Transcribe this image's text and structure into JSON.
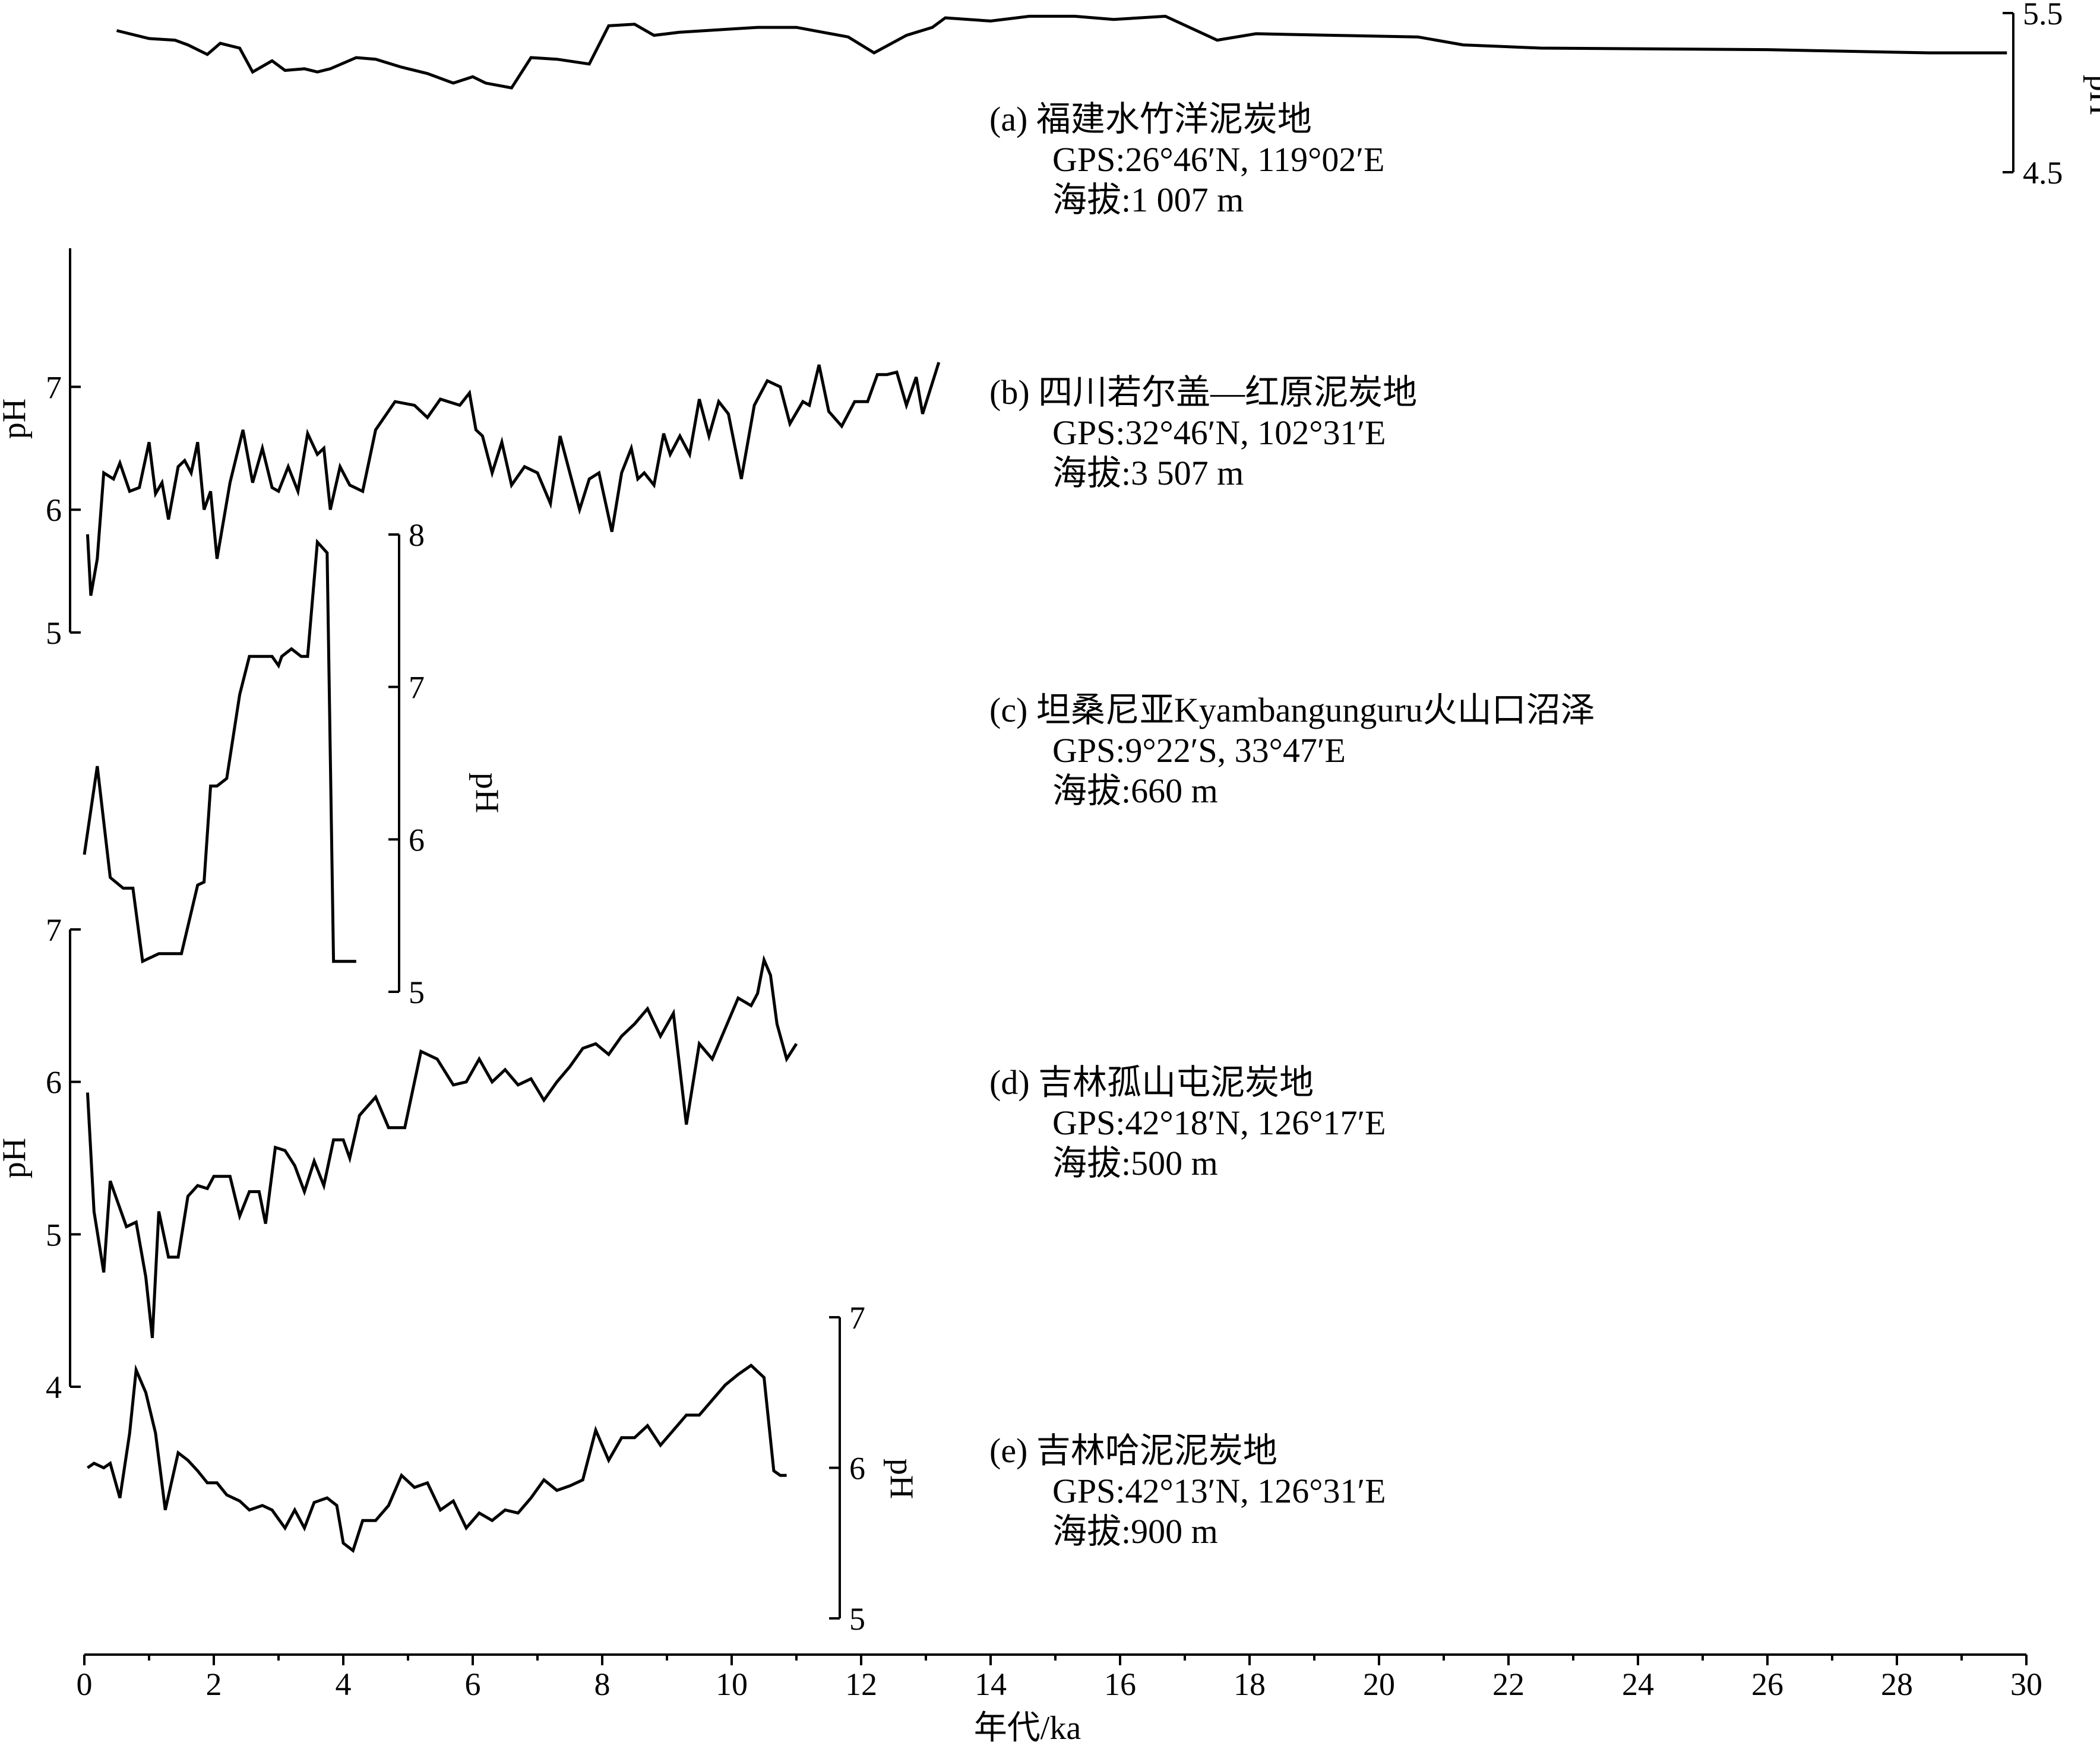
{
  "chart_data": {
    "type": "line",
    "xlabel": "年代/ka",
    "xlim": [
      0,
      30
    ],
    "x_ticks": [
      0,
      2,
      4,
      6,
      8,
      10,
      12,
      14,
      16,
      18,
      20,
      22,
      24,
      26,
      28,
      30
    ],
    "panels": [
      {
        "id": "a",
        "ylabel": "pH",
        "axis_side": "right",
        "ylim": [
          4.5,
          5.5
        ],
        "y_ticks": [
          4.5,
          5.5
        ],
        "lines": [
          "(a) 福建水竹洋泥炭地",
          "GPS:26°46′N, 119°02′E",
          "海拔:1 007 m"
        ],
        "x": [
          0.5,
          1.0,
          1.4,
          1.6,
          1.9,
          2.1,
          2.4,
          2.6,
          2.9,
          3.1,
          3.4,
          3.6,
          3.8,
          4.2,
          4.5,
          4.9,
          5.3,
          5.7,
          6.0,
          6.2,
          6.6,
          6.9,
          7.3,
          7.8,
          8.1,
          8.5,
          8.8,
          9.2,
          10.4,
          11.0,
          11.4,
          11.8,
          12.2,
          12.7,
          13.1,
          13.3,
          14.0,
          14.6,
          15.3,
          15.9,
          16.7,
          17.5,
          18.1,
          19.3,
          20.6,
          21.3,
          22.5,
          26.0,
          27.2,
          28.5,
          29.7
        ],
        "y": [
          5.39,
          5.34,
          5.33,
          5.3,
          5.24,
          5.31,
          5.28,
          5.13,
          5.2,
          5.14,
          5.15,
          5.13,
          5.15,
          5.22,
          5.21,
          5.16,
          5.12,
          5.06,
          5.1,
          5.06,
          5.03,
          5.22,
          5.21,
          5.18,
          5.42,
          5.43,
          5.36,
          5.38,
          5.41,
          5.41,
          5.38,
          5.35,
          5.25,
          5.36,
          5.41,
          5.47,
          5.45,
          5.48,
          5.48,
          5.46,
          5.48,
          5.33,
          5.37,
          5.36,
          5.35,
          5.3,
          5.28,
          5.27,
          5.26,
          5.25,
          5.25
        ]
      },
      {
        "id": "b",
        "ylabel": "pH",
        "axis_side": "left",
        "ylim": [
          5,
          7.5
        ],
        "y_ticks": [
          5,
          6,
          7
        ],
        "lines": [
          "(b) 四川若尔盖—红原泥炭地",
          "GPS:32°46′N, 102°31′E",
          "海拔:3 507 m"
        ],
        "x": [
          0.05,
          0.1,
          0.2,
          0.3,
          0.45,
          0.55,
          0.7,
          0.85,
          1.0,
          1.1,
          1.2,
          1.3,
          1.45,
          1.55,
          1.65,
          1.75,
          1.85,
          1.95,
          2.05,
          2.25,
          2.45,
          2.6,
          2.75,
          2.9,
          3.0,
          3.15,
          3.3,
          3.45,
          3.6,
          3.7,
          3.8,
          3.95,
          4.1,
          4.3,
          4.5,
          4.8,
          5.1,
          5.3,
          5.5,
          5.8,
          5.95,
          6.05,
          6.15,
          6.3,
          6.45,
          6.6,
          6.8,
          7.0,
          7.2,
          7.35,
          7.5,
          7.65,
          7.8,
          7.95,
          8.15,
          8.3,
          8.45,
          8.55,
          8.65,
          8.8,
          8.95,
          9.05,
          9.2,
          9.35,
          9.5,
          9.65,
          9.8,
          9.95,
          10.15,
          10.35,
          10.55,
          10.75,
          10.9,
          11.1,
          11.2,
          11.35,
          11.5,
          11.7,
          11.9,
          12.1,
          12.25,
          12.4,
          12.55,
          12.7,
          12.85,
          12.95,
          13.2
        ],
        "y": [
          5.8,
          5.3,
          5.6,
          6.3,
          6.25,
          6.38,
          6.15,
          6.18,
          6.55,
          6.13,
          6.22,
          5.92,
          6.35,
          6.4,
          6.3,
          6.55,
          6.0,
          6.15,
          5.6,
          6.22,
          6.65,
          6.22,
          6.5,
          6.18,
          6.15,
          6.35,
          6.15,
          6.62,
          6.45,
          6.5,
          6.0,
          6.35,
          6.2,
          6.15,
          6.65,
          6.88,
          6.85,
          6.75,
          6.9,
          6.85,
          6.95,
          6.65,
          6.6,
          6.3,
          6.55,
          6.2,
          6.35,
          6.3,
          6.05,
          6.6,
          6.3,
          6.0,
          6.25,
          6.3,
          5.82,
          6.3,
          6.5,
          6.25,
          6.3,
          6.2,
          6.62,
          6.45,
          6.6,
          6.45,
          6.9,
          6.6,
          6.88,
          6.78,
          6.25,
          6.85,
          7.05,
          7.0,
          6.7,
          6.88,
          6.85,
          7.18,
          6.8,
          6.68,
          6.88,
          6.88,
          7.1,
          7.1,
          7.12,
          6.85,
          7.08,
          6.78,
          7.2
        ]
      },
      {
        "id": "c",
        "ylabel": "pH",
        "axis_side": "right",
        "ylim": [
          5,
          8
        ],
        "y_ticks": [
          5,
          6,
          7,
          8
        ],
        "lines": [
          "(c) 坦桑尼亚Kyambangunguru火山口沼泽",
          "GPS:9°22′S, 33°47′E",
          "海拔:660 m"
        ],
        "x": [
          0.0,
          0.2,
          0.4,
          0.6,
          0.75,
          0.9,
          1.0,
          1.15,
          1.5,
          1.75,
          1.85,
          1.95,
          2.05,
          2.2,
          2.4,
          2.55,
          2.65,
          2.75,
          2.9,
          3.0,
          3.05,
          3.2,
          3.35,
          3.45,
          3.6,
          3.75,
          3.85,
          3.95,
          4.05,
          4.2
        ],
        "y": [
          5.9,
          6.48,
          5.75,
          5.68,
          5.68,
          5.2,
          5.22,
          5.25,
          5.25,
          5.7,
          5.72,
          6.35,
          6.35,
          6.4,
          6.95,
          7.2,
          7.2,
          7.2,
          7.2,
          7.14,
          7.2,
          7.25,
          7.2,
          7.2,
          7.95,
          7.88,
          5.2,
          5.2,
          5.2,
          5.2
        ]
      },
      {
        "id": "d",
        "ylabel": "pH",
        "axis_side": "left",
        "ylim": [
          4,
          7
        ],
        "y_ticks": [
          4,
          5,
          6,
          7
        ],
        "lines": [
          "(d) 吉林孤山屯泥炭地",
          "GPS:42°18′N, 126°17′E",
          "海拔:500 m"
        ],
        "x": [
          0.05,
          0.15,
          0.3,
          0.4,
          0.5,
          0.65,
          0.8,
          0.95,
          1.05,
          1.15,
          1.3,
          1.45,
          1.6,
          1.75,
          1.9,
          2.0,
          2.15,
          2.25,
          2.4,
          2.55,
          2.7,
          2.8,
          2.95,
          3.1,
          3.25,
          3.4,
          3.55,
          3.7,
          3.85,
          4.0,
          4.1,
          4.25,
          4.5,
          4.7,
          4.95,
          5.2,
          5.45,
          5.7,
          5.9,
          6.1,
          6.3,
          6.5,
          6.7,
          6.9,
          7.1,
          7.3,
          7.5,
          7.7,
          7.9,
          8.1,
          8.3,
          8.5,
          8.7,
          8.9,
          9.1,
          9.3,
          9.5,
          9.7,
          9.9,
          10.1,
          10.3,
          10.4,
          10.5,
          10.6,
          10.7,
          10.85,
          11.0
        ],
        "y": [
          5.93,
          5.15,
          4.75,
          5.35,
          5.23,
          5.05,
          5.08,
          4.72,
          4.32,
          5.15,
          4.85,
          4.85,
          5.25,
          5.32,
          5.3,
          5.38,
          5.38,
          5.38,
          5.12,
          5.28,
          5.28,
          5.07,
          5.57,
          5.55,
          5.45,
          5.28,
          5.48,
          5.32,
          5.62,
          5.62,
          5.5,
          5.78,
          5.9,
          5.7,
          5.7,
          6.2,
          6.15,
          5.98,
          6.0,
          6.15,
          6.0,
          6.08,
          5.98,
          6.02,
          5.88,
          6.0,
          6.1,
          6.22,
          6.25,
          6.18,
          6.3,
          6.38,
          6.48,
          6.3,
          6.45,
          5.72,
          6.25,
          6.15,
          6.35,
          6.55,
          6.5,
          6.58,
          6.8,
          6.7,
          6.38,
          6.15,
          6.25
        ]
      },
      {
        "id": "e",
        "ylabel": "pH",
        "axis_side": "right",
        "ylim": [
          5,
          7
        ],
        "y_ticks": [
          5,
          6,
          7
        ],
        "lines": [
          "(e) 吉林哈泥泥炭地",
          "GPS:42°13′N, 126°31′E",
          "海拔:900 m"
        ],
        "x": [
          0.05,
          0.15,
          0.3,
          0.4,
          0.55,
          0.7,
          0.8,
          0.95,
          1.1,
          1.25,
          1.45,
          1.6,
          1.75,
          1.9,
          2.05,
          2.2,
          2.4,
          2.55,
          2.75,
          2.9,
          3.1,
          3.25,
          3.4,
          3.55,
          3.75,
          3.9,
          4.0,
          4.15,
          4.3,
          4.5,
          4.7,
          4.9,
          5.1,
          5.3,
          5.5,
          5.7,
          5.9,
          6.1,
          6.3,
          6.5,
          6.7,
          6.9,
          7.1,
          7.3,
          7.5,
          7.7,
          7.9,
          8.1,
          8.3,
          8.5,
          8.7,
          8.9,
          9.1,
          9.3,
          9.5,
          9.7,
          9.9,
          10.1,
          10.3,
          10.5,
          10.65,
          10.75,
          10.85
        ],
        "y": [
          6.0,
          6.03,
          6.0,
          6.03,
          5.8,
          6.23,
          6.65,
          6.5,
          6.23,
          5.72,
          6.1,
          6.05,
          5.98,
          5.9,
          5.9,
          5.82,
          5.78,
          5.72,
          5.75,
          5.72,
          5.6,
          5.72,
          5.6,
          5.77,
          5.8,
          5.75,
          5.5,
          5.45,
          5.65,
          5.65,
          5.75,
          5.95,
          5.87,
          5.9,
          5.72,
          5.78,
          5.6,
          5.7,
          5.65,
          5.72,
          5.7,
          5.8,
          5.92,
          5.85,
          5.88,
          5.92,
          6.25,
          6.05,
          6.2,
          6.2,
          6.28,
          6.15,
          6.25,
          6.35,
          6.35,
          6.45,
          6.55,
          6.62,
          6.68,
          6.6,
          5.98,
          5.95,
          5.95
        ]
      }
    ]
  }
}
